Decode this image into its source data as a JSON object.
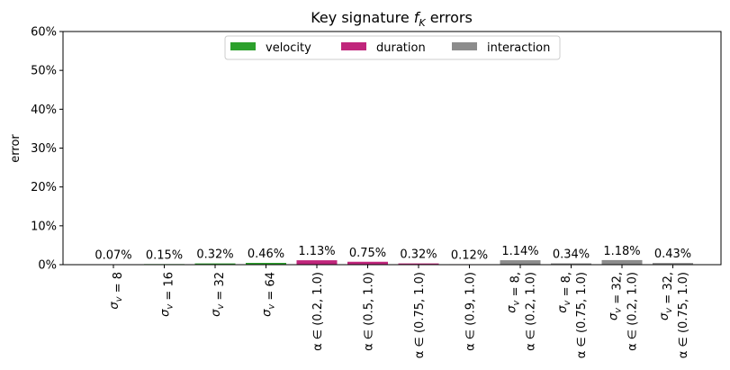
{
  "chart_data": {
    "type": "bar",
    "title": "Key signature",
    "title_math": "f",
    "title_sub": "K",
    "title_suffix": "errors",
    "ylabel": "error",
    "ylim": [
      0,
      60
    ],
    "yticks": [
      "0%",
      "10%",
      "20%",
      "30%",
      "40%",
      "50%",
      "60%"
    ],
    "legend_position": "top-center",
    "legend": [
      {
        "name": "velocity",
        "color": "#2ca02c"
      },
      {
        "name": "duration",
        "color": "#c0267c"
      },
      {
        "name": "interaction",
        "color": "#8c8c8c"
      }
    ],
    "categories": [
      {
        "lines": [
          [
            {
              "t": "σ",
              "s": "v"
            },
            {
              "t": " = 8"
            }
          ]
        ],
        "group": "velocity"
      },
      {
        "lines": [
          [
            {
              "t": "σ",
              "s": "v"
            },
            {
              "t": " = 16"
            }
          ]
        ],
        "group": "velocity"
      },
      {
        "lines": [
          [
            {
              "t": "σ",
              "s": "v"
            },
            {
              "t": " = 32"
            }
          ]
        ],
        "group": "velocity"
      },
      {
        "lines": [
          [
            {
              "t": "σ",
              "s": "v"
            },
            {
              "t": " = 64"
            }
          ]
        ],
        "group": "velocity"
      },
      {
        "lines": [
          [
            {
              "t": "α ∈ (0.2, 1.0)"
            }
          ]
        ],
        "group": "duration"
      },
      {
        "lines": [
          [
            {
              "t": "α ∈ (0.5, 1.0)"
            }
          ]
        ],
        "group": "duration"
      },
      {
        "lines": [
          [
            {
              "t": "α ∈ (0.75, 1.0)"
            }
          ]
        ],
        "group": "duration"
      },
      {
        "lines": [
          [
            {
              "t": "α ∈ (0.9, 1.0)"
            }
          ]
        ],
        "group": "duration"
      },
      {
        "lines": [
          [
            {
              "t": "σ",
              "s": "v"
            },
            {
              "t": " = 8,"
            }
          ],
          [
            {
              "t": "α ∈ (0.2, 1.0)"
            }
          ]
        ],
        "group": "interaction"
      },
      {
        "lines": [
          [
            {
              "t": "σ",
              "s": "v"
            },
            {
              "t": " = 8,"
            }
          ],
          [
            {
              "t": "α ∈ (0.75, 1.0)"
            }
          ]
        ],
        "group": "interaction"
      },
      {
        "lines": [
          [
            {
              "t": "σ",
              "s": "v"
            },
            {
              "t": " = 32,"
            }
          ],
          [
            {
              "t": "α ∈ (0.2, 1.0)"
            }
          ]
        ],
        "group": "interaction"
      },
      {
        "lines": [
          [
            {
              "t": "σ",
              "s": "v"
            },
            {
              "t": " = 32,"
            }
          ],
          [
            {
              "t": "α ∈ (0.75, 1.0)"
            }
          ]
        ],
        "group": "interaction"
      }
    ],
    "values": [
      0.07,
      0.15,
      0.32,
      0.46,
      1.13,
      0.75,
      0.32,
      0.12,
      1.14,
      0.34,
      1.18,
      0.43
    ],
    "value_labels": [
      "0.07%",
      "0.15%",
      "0.32%",
      "0.46%",
      "1.13%",
      "0.75%",
      "0.32%",
      "0.12%",
      "1.14%",
      "0.34%",
      "1.18%",
      "0.43%"
    ],
    "grid": false
  }
}
